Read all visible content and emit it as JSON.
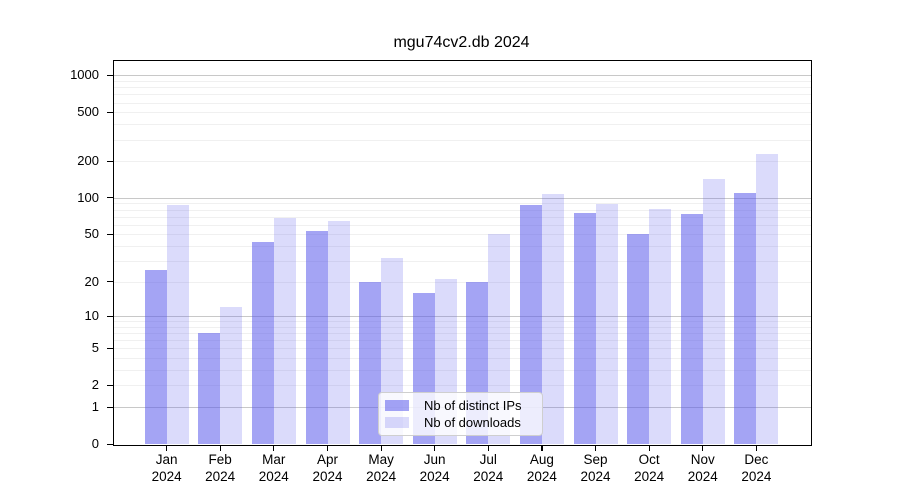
{
  "chart": {
    "title": "mgu74cv2.db 2024"
  },
  "chart_data": {
    "type": "bar",
    "title": "mgu74cv2.db 2024",
    "scale": "log1p",
    "grid": "on",
    "legend_position": "lower center",
    "months": [
      "Jan",
      "Feb",
      "Mar",
      "Apr",
      "May",
      "Jun",
      "Jul",
      "Aug",
      "Sep",
      "Oct",
      "Nov",
      "Dec"
    ],
    "year": "2024",
    "series": [
      {
        "name": "Nb of distinct IPs",
        "color": "#5a5aeb",
        "alpha": 0.55,
        "values": [
          25,
          7,
          43,
          53,
          20,
          16,
          20,
          88,
          75,
          50,
          73,
          109
        ]
      },
      {
        "name": "Nb of downloads",
        "color": "#5a5aeb",
        "alpha": 0.215,
        "values": [
          88,
          12,
          68,
          65,
          32,
          21,
          50,
          108,
          89,
          81,
          142,
          229
        ]
      }
    ],
    "yticks": [
      0,
      1,
      2,
      5,
      10,
      20,
      50,
      100,
      200,
      500,
      1000
    ],
    "ylim": [
      0,
      1335
    ],
    "grid_style": {
      "major_ticks": [
        1,
        10,
        100,
        1000
      ],
      "minor_factors": [
        2,
        3,
        4,
        5,
        6,
        7,
        8,
        9
      ],
      "minor_decades": [
        1,
        10,
        100
      ],
      "major_color": "#c8c8c8",
      "minor_color": "#f0f0f0"
    }
  }
}
